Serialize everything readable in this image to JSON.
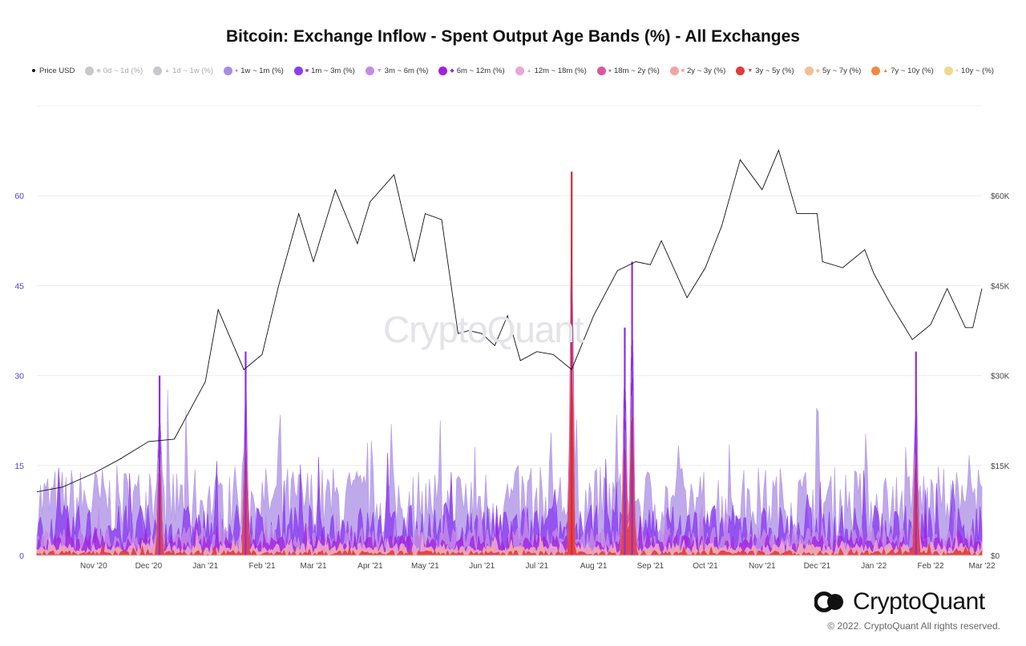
{
  "chart_data": {
    "type": "area",
    "title": "Bitcoin: Exchange Inflow - Spent Output Age Bands (%) - All Exchanges",
    "x_range": [
      "2020-10-01",
      "2022-03-01"
    ],
    "x_ticks": [
      "Nov '20",
      "Dec '20",
      "Jan '21",
      "Feb '21",
      "Mar '21",
      "Apr '21",
      "May '21",
      "Jun '21",
      "Jul '21",
      "Aug '21",
      "Sep '21",
      "Oct '21",
      "Nov '21",
      "Dec '21",
      "Jan '22",
      "Feb '22",
      "Mar '22"
    ],
    "x_tick_dates": [
      "2020-11-01",
      "2020-12-01",
      "2021-01-01",
      "2021-02-01",
      "2021-03-01",
      "2021-04-01",
      "2021-05-01",
      "2021-06-01",
      "2021-07-01",
      "2021-08-01",
      "2021-09-01",
      "2021-10-01",
      "2021-11-01",
      "2021-12-01",
      "2022-01-01",
      "2022-02-01",
      "2022-03-01"
    ],
    "y_left": {
      "ticks": [
        "0",
        "15",
        "30",
        "45",
        "60"
      ],
      "values": [
        0,
        15,
        30,
        45,
        60
      ],
      "range": [
        0,
        75
      ],
      "color": "#5b3bd6"
    },
    "y_right": {
      "ticks": [
        "$0",
        "$15K",
        "$30K",
        "$45K",
        "$60K"
      ],
      "values": [
        0,
        15000,
        30000,
        45000,
        60000
      ],
      "range": [
        0,
        75000
      ]
    },
    "grid": "horizontal",
    "legend_position": "top",
    "legend": [
      {
        "name": "Price USD",
        "marker": "dot",
        "color": "#111111",
        "visible": true
      },
      {
        "name": "0d ~ 1d (%)",
        "marker": "◆",
        "color": "#c4b5f0",
        "visible": false
      },
      {
        "name": "1d ~ 1w (%)",
        "marker": "▲",
        "color": "#9b7ee8",
        "visible": false
      },
      {
        "name": "1w ~ 1m (%)",
        "marker": "●",
        "color": "#a98ae6",
        "visible": true
      },
      {
        "name": "1m ~ 3m (%)",
        "marker": "■",
        "color": "#8a3df0",
        "visible": true
      },
      {
        "name": "3m ~ 6m (%)",
        "marker": "▼",
        "color": "#c38be8",
        "visible": true
      },
      {
        "name": "6m ~ 12m (%)",
        "marker": "◆",
        "color": "#a020e0",
        "visible": true
      },
      {
        "name": "12m ~ 18m (%)",
        "marker": "▲",
        "color": "#e9a6d6",
        "visible": true
      },
      {
        "name": "18m ~ 2y (%)",
        "marker": "●",
        "color": "#d9589e",
        "visible": true
      },
      {
        "name": "2y ~ 3y (%)",
        "marker": "■",
        "color": "#f2a4a4",
        "visible": true
      },
      {
        "name": "3y ~ 5y (%)",
        "marker": "▼",
        "color": "#e23b3b",
        "visible": true
      },
      {
        "name": "5y ~ 7y (%)",
        "marker": "◆",
        "color": "#f5bd92",
        "visible": true
      },
      {
        "name": "7y ~ 10y (%)",
        "marker": "▲",
        "color": "#f08a3c",
        "visible": true
      },
      {
        "name": "10y ~ (%)",
        "marker": "●",
        "color": "#efd88c",
        "visible": true
      }
    ],
    "price_series": {
      "name": "Price USD",
      "dates": [
        "2020-10-01",
        "2020-10-15",
        "2020-11-01",
        "2020-11-15",
        "2020-12-01",
        "2020-12-15",
        "2021-01-01",
        "2021-01-08",
        "2021-01-22",
        "2021-02-01",
        "2021-02-10",
        "2021-02-21",
        "2021-03-01",
        "2021-03-13",
        "2021-03-25",
        "2021-04-01",
        "2021-04-14",
        "2021-04-25",
        "2021-05-01",
        "2021-05-10",
        "2021-05-19",
        "2021-05-25",
        "2021-06-01",
        "2021-06-08",
        "2021-06-15",
        "2021-06-22",
        "2021-07-01",
        "2021-07-10",
        "2021-07-20",
        "2021-08-01",
        "2021-08-14",
        "2021-08-24",
        "2021-09-01",
        "2021-09-07",
        "2021-09-21",
        "2021-10-01",
        "2021-10-10",
        "2021-10-20",
        "2021-11-01",
        "2021-11-10",
        "2021-11-20",
        "2021-12-01",
        "2021-12-04",
        "2021-12-15",
        "2021-12-27",
        "2022-01-01",
        "2022-01-10",
        "2022-01-22",
        "2022-02-01",
        "2022-02-10",
        "2022-02-20",
        "2022-02-24",
        "2022-03-01"
      ],
      "values": [
        10600,
        11400,
        13700,
        16000,
        19000,
        19400,
        29000,
        41000,
        31000,
        33500,
        45000,
        57000,
        49000,
        61000,
        52000,
        59000,
        63500,
        49000,
        57000,
        56000,
        37000,
        37500,
        37000,
        35000,
        40000,
        32500,
        34000,
        33500,
        31000,
        40000,
        47500,
        49000,
        48500,
        52500,
        43000,
        48000,
        55000,
        66000,
        61000,
        67600,
        57000,
        57000,
        49000,
        48000,
        51000,
        47000,
        42000,
        36000,
        38500,
        44500,
        38000,
        38000,
        44500
      ]
    },
    "spike_annotations": [
      {
        "date": "2020-12-07",
        "value": 30
      },
      {
        "date": "2021-01-23",
        "value": 34
      },
      {
        "date": "2021-07-20",
        "value": 64
      },
      {
        "date": "2021-08-18",
        "value": 38
      },
      {
        "date": "2021-08-22",
        "value": 49
      },
      {
        "date": "2022-01-24",
        "value": 34
      }
    ]
  },
  "watermark": "CryptoQuant",
  "footer": {
    "brand": "CryptoQuant",
    "copyright": "© 2022. CryptoQuant All rights reserved."
  }
}
